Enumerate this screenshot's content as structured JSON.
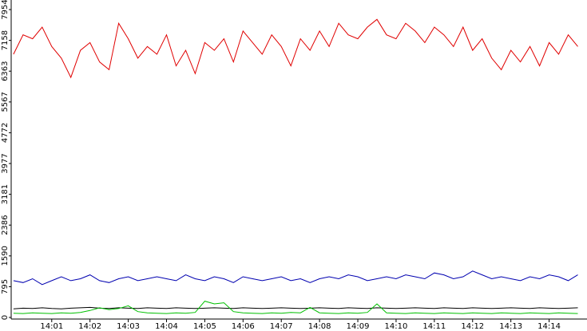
{
  "chart_data": {
    "type": "line",
    "x": [
      0,
      0.25,
      0.5,
      0.75,
      1,
      1.25,
      1.5,
      1.75,
      2,
      2.25,
      2.5,
      2.75,
      3,
      3.25,
      3.5,
      3.75,
      4,
      4.25,
      4.5,
      4.75,
      5,
      5.25,
      5.5,
      5.75,
      6,
      6.25,
      6.5,
      6.75,
      7,
      7.25,
      7.5,
      7.75,
      8,
      8.25,
      8.5,
      8.75,
      9,
      9.25,
      9.5,
      9.75,
      10,
      10.25,
      10.5,
      10.75,
      11,
      11.25,
      11.5,
      11.75,
      12,
      12.25,
      12.5,
      12.75,
      13,
      13.25,
      13.5,
      13.75,
      14,
      14.25,
      14.5,
      14.75
    ],
    "series": [
      {
        "color": "#e00000",
        "values": [
          6800,
          7300,
          7200,
          7500,
          7000,
          6700,
          6200,
          6900,
          7100,
          6600,
          6400,
          7600,
          7200,
          6700,
          7000,
          6800,
          7300,
          6500,
          6900,
          6300,
          7100,
          6900,
          7200,
          6600,
          7400,
          7100,
          6800,
          7300,
          7000,
          6500,
          7200,
          6900,
          7400,
          7000,
          7600,
          7300,
          7200,
          7500,
          7700,
          7300,
          7200,
          7600,
          7400,
          7100,
          7500,
          7300,
          7000,
          7500,
          6900,
          7200,
          6700,
          6400,
          6900,
          6600,
          7000,
          6500,
          7100,
          6800,
          7300,
          7000
        ]
      },
      {
        "color": "#0000b0",
        "values": [
          950,
          900,
          1000,
          850,
          950,
          1050,
          950,
          1000,
          1100,
          950,
          900,
          1000,
          1050,
          950,
          1000,
          1050,
          1000,
          950,
          1100,
          1000,
          950,
          1050,
          1000,
          900,
          1050,
          1000,
          950,
          1000,
          1050,
          950,
          1000,
          900,
          1000,
          1050,
          1000,
          1100,
          1050,
          950,
          1000,
          1050,
          1000,
          1100,
          1050,
          1000,
          1150,
          1100,
          1000,
          1050,
          1200,
          1100,
          1000,
          1050,
          1000,
          950,
          1050,
          1000,
          1100,
          1050,
          950,
          1100
        ]
      },
      {
        "color": "#000000",
        "values": [
          220,
          240,
          230,
          250,
          230,
          220,
          240,
          250,
          260,
          240,
          230,
          250,
          240,
          230,
          250,
          240,
          230,
          250,
          240,
          230,
          240,
          250,
          240,
          230,
          250,
          240,
          230,
          240,
          250,
          240,
          230,
          240,
          250,
          240,
          230,
          250,
          240,
          230,
          250,
          240,
          230,
          240,
          250,
          240,
          230,
          250,
          240,
          230,
          250,
          240,
          230,
          240,
          250,
          240,
          230,
          250,
          240,
          230,
          240,
          250
        ]
      },
      {
        "color": "#00c000",
        "values": [
          110,
          100,
          120,
          110,
          100,
          120,
          110,
          130,
          180,
          250,
          200,
          230,
          300,
          150,
          120,
          110,
          100,
          120,
          110,
          130,
          420,
          350,
          380,
          150,
          120,
          110,
          100,
          120,
          110,
          130,
          120,
          260,
          120,
          110,
          100,
          120,
          110,
          130,
          350,
          120,
          110,
          100,
          120,
          110,
          100,
          120,
          110,
          100,
          120,
          110,
          100,
          120,
          110,
          100,
          120,
          110,
          100,
          120,
          110,
          100
        ]
      }
    ],
    "xlim": [
      -0.06,
      14.99
    ],
    "xticks": [
      {
        "value": 1,
        "label": "14:01"
      },
      {
        "value": 2,
        "label": "14:02"
      },
      {
        "value": 3,
        "label": "14:03"
      },
      {
        "value": 4,
        "label": "14:04"
      },
      {
        "value": 5,
        "label": "14:05"
      },
      {
        "value": 6,
        "label": "14:06"
      },
      {
        "value": 7,
        "label": "14:07"
      },
      {
        "value": 8,
        "label": "14:08"
      },
      {
        "value": 9,
        "label": "14:09"
      },
      {
        "value": 10,
        "label": "14:10"
      },
      {
        "value": 11,
        "label": "14:11"
      },
      {
        "value": 12,
        "label": "14:12"
      },
      {
        "value": 13,
        "label": "14:13"
      },
      {
        "value": 14,
        "label": "14:14"
      }
    ],
    "ylim": [
      0,
      7954
    ],
    "yticks": [
      0,
      795,
      1590,
      2386,
      3181,
      3977,
      4772,
      5567,
      6363,
      7158,
      7954
    ]
  }
}
